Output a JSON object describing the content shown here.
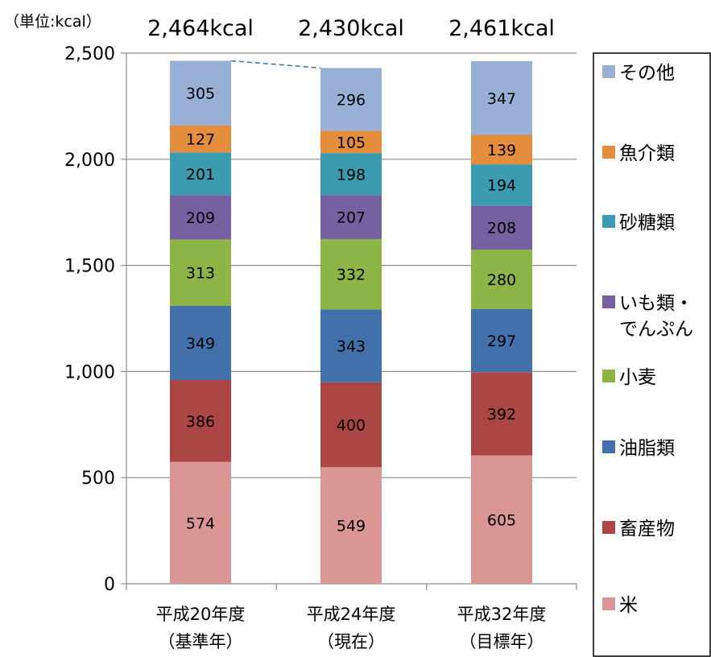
{
  "chart_data": {
    "type": "bar",
    "stacked": true,
    "unit_label": "（単位:kcal）",
    "categories": [
      [
        "平成20年度",
        "（基準年）"
      ],
      [
        "平成24年度",
        "（現在）"
      ],
      [
        "平成32年度",
        "（目標年）"
      ]
    ],
    "totals": [
      "2,464kcal",
      "2,430kcal",
      "2,461kcal"
    ],
    "y_ticks": [
      "0",
      "500",
      "1,000",
      "1,500",
      "2,000",
      "2,500"
    ],
    "ylim": [
      0,
      2500
    ],
    "grid": true,
    "legend_position": "right",
    "series": [
      {
        "name": "米",
        "color": "#d99694",
        "values": [
          574,
          549,
          605
        ]
      },
      {
        "name": "畜産物",
        "color": "#ab4644",
        "values": [
          386,
          400,
          392
        ]
      },
      {
        "name": "油脂類",
        "color": "#4170ab",
        "values": [
          349,
          343,
          297
        ]
      },
      {
        "name": "小麦",
        "color": "#8db446",
        "values": [
          313,
          332,
          280
        ]
      },
      {
        "name": "いも類・でんぷん",
        "legend_lines": [
          "いも類・",
          "でんぷん"
        ],
        "color": "#7661a0",
        "values": [
          209,
          207,
          208
        ]
      },
      {
        "name": "砂糖類",
        "color": "#3b9cb1",
        "values": [
          201,
          198,
          194
        ]
      },
      {
        "name": "魚介類",
        "color": "#e48d3c",
        "values": [
          127,
          105,
          139
        ]
      },
      {
        "name": "その他",
        "color": "#98afd6",
        "values": [
          305,
          296,
          347
        ]
      }
    ]
  }
}
